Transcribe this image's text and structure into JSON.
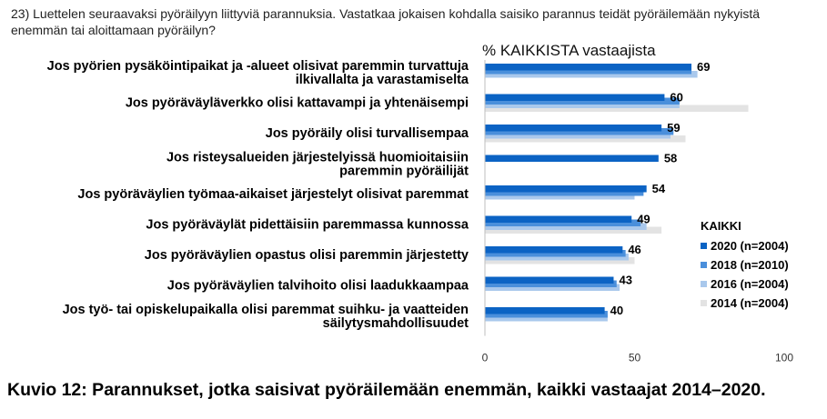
{
  "question": "23) Luettelen seuraavaksi pyöräilyyn liittyviä parannuksia. Vastatkaa jokaisen kohdalla saisiko parannus teidät pyöräilemään nykyistä enemmän tai aloittamaan pyöräilyn?",
  "caption": "Kuvio 12: Parannukset, jotka saisivat pyöräilemään enemmän, kaikki vastaajat 2014–2020.",
  "colors": {
    "2020": "#0b63c4",
    "2018": "#4a8fdb",
    "2016": "#a9c8ec",
    "2014": "#e3e3e3"
  },
  "chart_data": {
    "type": "bar",
    "orientation": "horizontal",
    "title": "% KAIKKISTA vastaajista",
    "xlim": [
      0,
      100
    ],
    "xticks": [
      0,
      50,
      100
    ],
    "grid": false,
    "legend_title": "KAIKKI",
    "legend_position": "right",
    "categories": [
      [
        "Jos pyörien pysäköintipaikat ja -alueet olisivat paremmin turvattuja",
        "ilkivallalta ja varastamiselta"
      ],
      [
        "Jos pyöräväyläverkko olisi kattavampi ja yhtenäisempi"
      ],
      [
        "Jos pyöräily olisi turvallisempaa"
      ],
      [
        "Jos risteysalueiden järjestelyissä huomioitaisiin",
        "paremmin pyöräilijät"
      ],
      [
        "Jos pyöräväylien työmaa-aikaiset järjestelyt olisivat paremmat"
      ],
      [
        "Jos pyöräväylät pidettäisiin paremmassa kunnossa"
      ],
      [
        "Jos pyöräväylien opastus olisi paremmin järjestetty"
      ],
      [
        "Jos pyöräväylien talvihoito olisi laadukkaampaa"
      ],
      [
        "Jos työ- tai opiskelupaikalla olisi paremmat suihku- ja vaatteiden",
        "säilytysmahdollisuudet"
      ]
    ],
    "series": [
      {
        "name": "2020 (n=2004)",
        "year": "2020",
        "values": [
          69,
          60,
          59,
          58,
          54,
          49,
          46,
          43,
          40
        ]
      },
      {
        "name": "2018 (n=2010)",
        "year": "2018",
        "values": [
          69,
          65,
          63,
          null,
          53,
          52,
          47,
          44,
          41
        ]
      },
      {
        "name": "2016 (n=2004)",
        "year": "2016",
        "values": [
          71,
          65,
          62,
          null,
          50,
          54,
          48,
          45,
          41
        ]
      },
      {
        "name": "2014 (n=2004)",
        "year": "2014",
        "values": [
          null,
          88,
          67,
          null,
          null,
          59,
          50,
          null,
          null
        ]
      }
    ],
    "value_labels": [
      69,
      60,
      59,
      58,
      54,
      49,
      46,
      43,
      40
    ]
  }
}
